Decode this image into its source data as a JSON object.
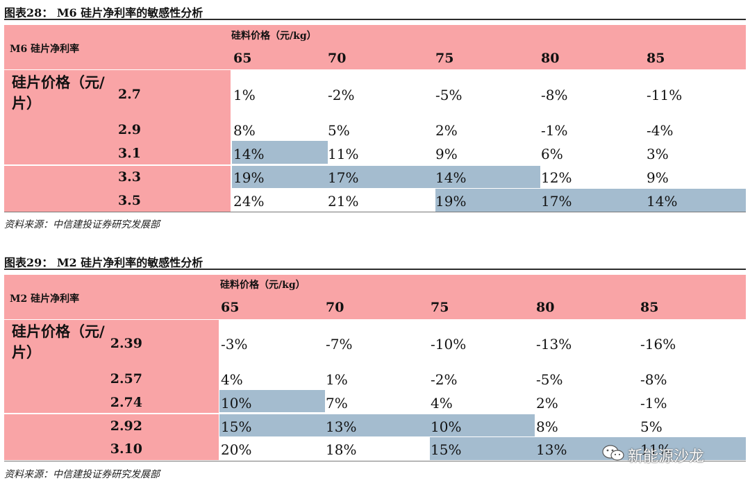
{
  "tables": [
    {
      "title": "图表28： M6 硅片净利率的敏感性分析",
      "corner_label": "M6 硅片净利率",
      "col_header": "硅料价格（元/kg）",
      "row_header": "硅片价格（元/片）",
      "columns": [
        "65",
        "70",
        "75",
        "80",
        "85"
      ],
      "rows": [
        {
          "price": "2.7",
          "values": [
            "1%",
            "-2%",
            "-5%",
            "-8%",
            "-11%"
          ]
        },
        {
          "price": "2.9",
          "values": [
            "8%",
            "5%",
            "2%",
            "-1%",
            "-4%"
          ]
        },
        {
          "price": "3.1",
          "values": [
            "14%",
            "11%",
            "9%",
            "6%",
            "3%"
          ]
        },
        {
          "price": "3.3",
          "values": [
            "19%",
            "17%",
            "14%",
            "12%",
            "9%"
          ]
        },
        {
          "price": "3.5",
          "values": [
            "24%",
            "21%",
            "19%",
            "17%",
            "14%"
          ]
        }
      ],
      "source": "资料来源：中信建投证券研究发展部"
    },
    {
      "title": "图表29： M2 硅片净利率的敏感性分析",
      "corner_label": "M2 硅片净利率",
      "col_header": "硅料价格（元/kg）",
      "row_header": "硅片价格（元/片）",
      "columns": [
        "65",
        "70",
        "75",
        "80",
        "85"
      ],
      "rows": [
        {
          "price": "2.39",
          "values": [
            "-3%",
            "-7%",
            "-10%",
            "-13%",
            "-16%"
          ]
        },
        {
          "price": "2.57",
          "values": [
            "4%",
            "1%",
            "-2%",
            "-5%",
            "-8%"
          ]
        },
        {
          "price": "2.74",
          "values": [
            "10%",
            "7%",
            "4%",
            "2%",
            "-1%"
          ]
        },
        {
          "price": "2.92",
          "values": [
            "15%",
            "13%",
            "10%",
            "8%",
            "5%"
          ]
        },
        {
          "price": "3.10",
          "values": [
            "20%",
            "18%",
            "15%",
            "13%",
            "11%"
          ]
        }
      ],
      "source": "资料来源：中信建投证券研究发展部"
    }
  ],
  "watermark": {
    "text": "新能源沙龙",
    "icon": "wechat-icon"
  },
  "colors": {
    "pink": "#f9a4a6",
    "blue": "#a4bccf"
  }
}
